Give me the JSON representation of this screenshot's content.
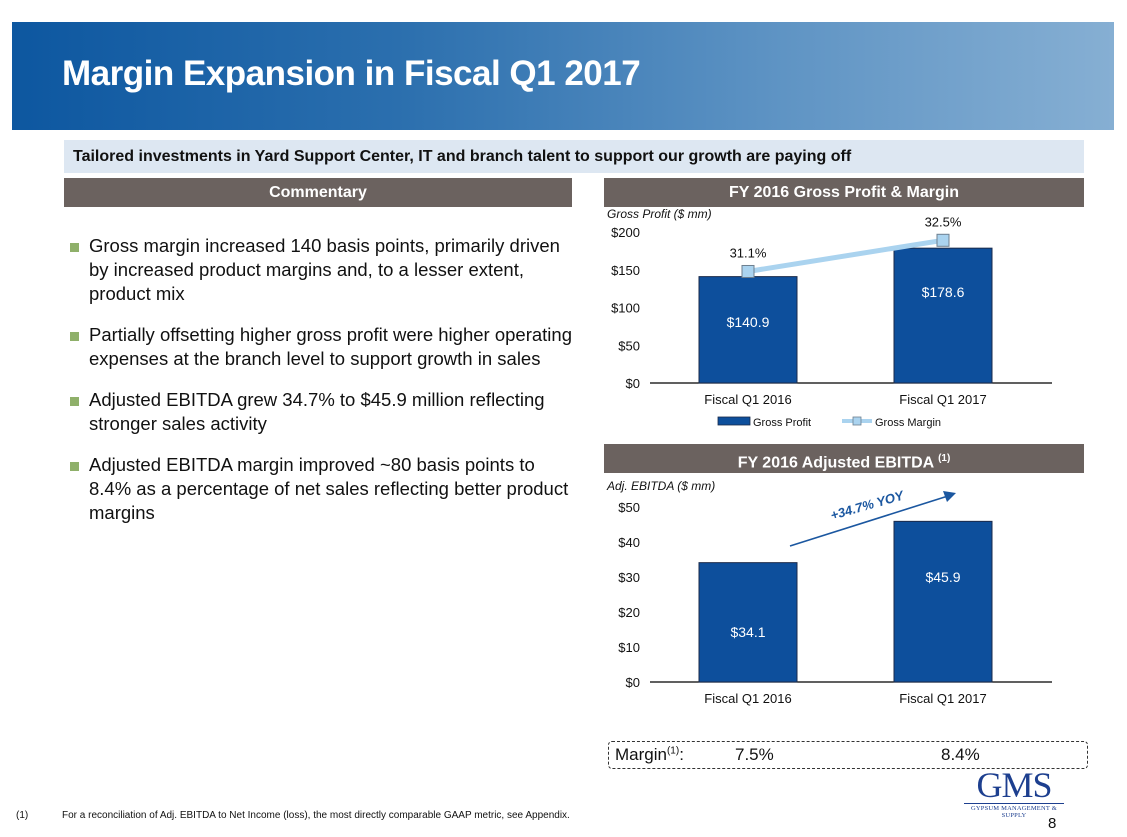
{
  "header": {
    "title": "Margin Expansion in Fiscal Q1 2017"
  },
  "tagline": "Tailored investments in Yard Support Center, IT and branch talent to support our growth are paying off",
  "commentary": {
    "heading": "Commentary",
    "bullets": [
      "Gross margin increased 140 basis points, primarily driven by increased product margins and, to a lesser extent, product mix",
      "Partially offsetting higher gross profit were higher operating expenses at the branch level to support growth in sales",
      "Adjusted EBITDA grew 34.7% to $45.9 million reflecting stronger sales activity",
      "Adjusted EBITDA margin improved ~80 basis points to 8.4% as a percentage of net sales reflecting better product margins"
    ]
  },
  "colors": {
    "bar": "#0d4f9c",
    "line": "#aad3ef",
    "section_header": "#6b625f",
    "bullet": "#8fb06a"
  },
  "chart_data": [
    {
      "type": "bar",
      "title": "FY 2016 Gross Profit & Margin",
      "ylabel": "Gross Profit ($ mm)",
      "xlabel": "",
      "categories": [
        "Fiscal Q1 2016",
        "Fiscal Q1 2017"
      ],
      "ylim": [
        0,
        200
      ],
      "yticks": [
        0,
        50,
        100,
        150,
        200
      ],
      "ytick_labels": [
        "$0",
        "$50",
        "$100",
        "$150",
        "$200"
      ],
      "grid": false,
      "series": [
        {
          "name": "Gross Profit",
          "type": "bar",
          "values": [
            140.9,
            178.6
          ],
          "labels": [
            "$140.9",
            "$178.6"
          ]
        },
        {
          "name": "Gross Margin",
          "type": "line",
          "values": [
            31.1,
            32.5
          ],
          "labels": [
            "31.1%",
            "32.5%"
          ]
        }
      ],
      "legend": {
        "position": "bottom",
        "entries": [
          "Gross Profit",
          "Gross Margin"
        ]
      }
    },
    {
      "type": "bar",
      "title": "FY 2016 Adjusted EBITDA",
      "title_sup": "(1)",
      "ylabel": "Adj. EBITDA ($ mm)",
      "xlabel": "",
      "categories": [
        "Fiscal Q1 2016",
        "Fiscal Q1 2017"
      ],
      "ylim": [
        0,
        50
      ],
      "yticks": [
        0,
        10,
        20,
        30,
        40,
        50
      ],
      "ytick_labels": [
        "$0",
        "$10",
        "$20",
        "$30",
        "$40",
        "$50"
      ],
      "grid": false,
      "series": [
        {
          "name": "Adj. EBITDA",
          "type": "bar",
          "values": [
            34.1,
            45.9
          ],
          "labels": [
            "$34.1",
            "$45.9"
          ]
        }
      ],
      "annotation": "+34.7% YOY"
    }
  ],
  "margin_row": {
    "label": "Margin",
    "label_sup": "(1)",
    "suffix": ":",
    "values": [
      "7.5%",
      "8.4%"
    ]
  },
  "footnote": {
    "marker": "(1)",
    "text": "For a reconciliation of Adj. EBITDA to Net Income (loss), the most directly comparable GAAP metric, see Appendix."
  },
  "logo": {
    "name": "GMS",
    "tagline": "GYPSUM MANAGEMENT & SUPPLY"
  },
  "page_number": "8"
}
